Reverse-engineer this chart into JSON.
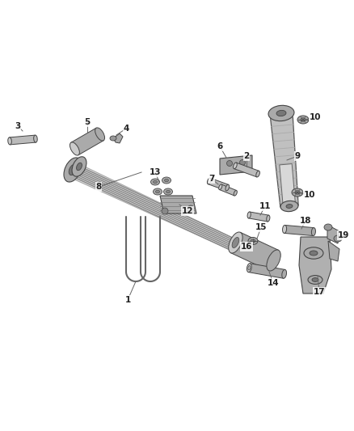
{
  "bg_color": "#ffffff",
  "lc": "#555555",
  "pc": "#999999",
  "dc": "#444444",
  "lpc": "#cccccc",
  "mid": "#888888",
  "font_size": 7.5
}
